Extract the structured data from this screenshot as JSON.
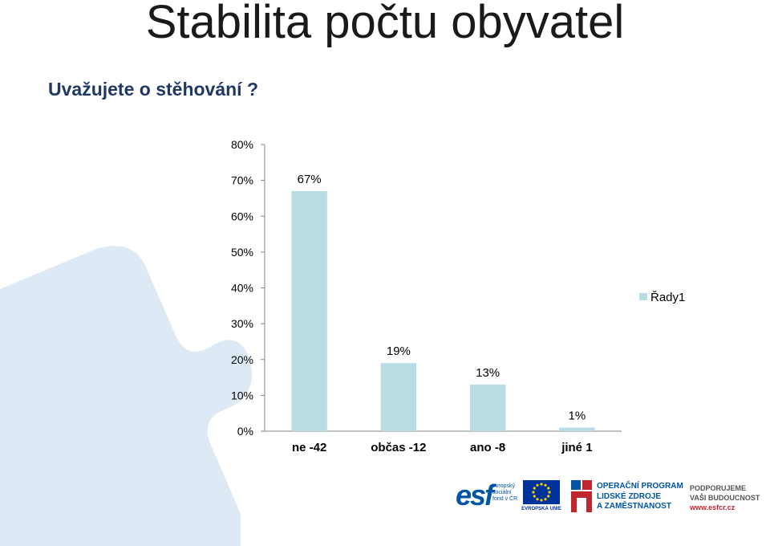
{
  "slide": {
    "title": "Stabilita počtu obyvatel",
    "subtitle": "Uvažujete o stěhování ?"
  },
  "colors": {
    "bar": "#b7dde2",
    "axis": "#868686",
    "puzzle": "#dde9f4",
    "subtitle": "#1f3864"
  },
  "chart_data": {
    "type": "bar",
    "categories": [
      "ne -42",
      "občas -12",
      "ano -8",
      "jiné 1"
    ],
    "series": [
      {
        "name": "Řady1",
        "values": [
          67,
          19,
          13,
          1
        ]
      }
    ],
    "data_labels": [
      "67%",
      "19%",
      "13%",
      "1%"
    ],
    "yticks": [
      "0%",
      "10%",
      "20%",
      "30%",
      "40%",
      "50%",
      "60%",
      "70%",
      "80%"
    ],
    "ylim": [
      0,
      80
    ],
    "grid": false,
    "legend": "right"
  },
  "footer": {
    "esf": {
      "big": "esf",
      "small": [
        "evropský",
        "sociální",
        "fond v ČR"
      ],
      "icon": "esf-logo"
    },
    "eu": {
      "text": "EVROPSKÁ UNIE",
      "icon": "eu-flag"
    },
    "op": {
      "lines": [
        "OPERAČNÍ PROGRAM",
        "LIDSKÉ ZDROJE",
        "A ZAMĚSTNANOST"
      ],
      "icon": "op-lzz-logo"
    },
    "support": {
      "lines": [
        "PODPORUJEME",
        "VAŠI BUDOUCNOST"
      ],
      "url": "www.esfcr.cz"
    }
  }
}
